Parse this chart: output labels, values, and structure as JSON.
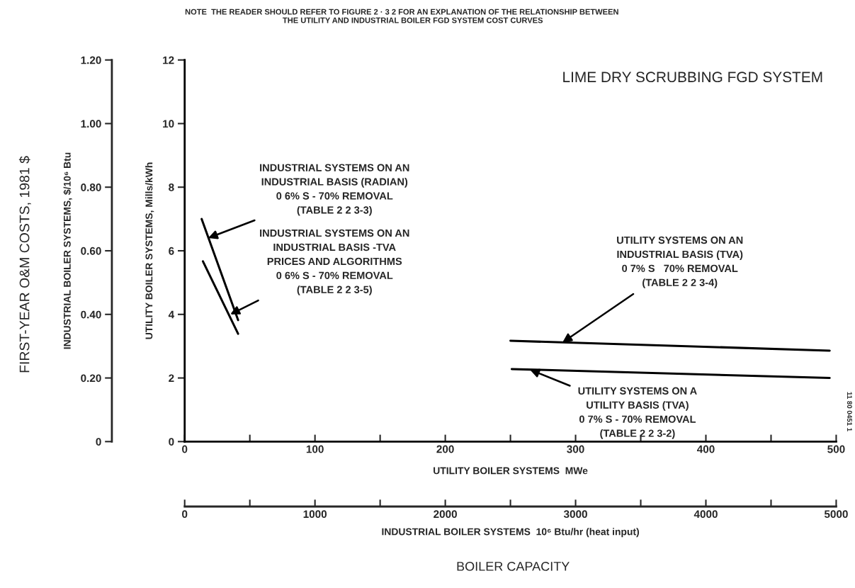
{
  "chart_data": {
    "type": "line",
    "title": "LIME DRY SCRUBBING FGD SYSTEM",
    "xlabel": "UTILITY BOILER SYSTEMS  MWe",
    "ylabel": "UTILITY BOILER SYSTEMS, Mills/kWh",
    "y2label": "INDUSTRIAL BOILER SYSTEMS, $/10⁶ Btu",
    "x2label": "INDUSTRIAL BOILER SYSTEMS  10⁶ Btu/hr (heat input)",
    "series": [
      {
        "color": "#000000",
        "x": [
          13,
          41
        ],
        "values": [
          7.0,
          3.82
        ]
      },
      {
        "color": "#000000",
        "x": [
          14,
          41
        ],
        "values": [
          5.67,
          3.39
        ]
      },
      {
        "color": "#000000",
        "x": [
          250,
          495
        ],
        "values": [
          3.17,
          2.86
        ]
      },
      {
        "color": "#000000",
        "x": [
          251,
          495
        ],
        "values": [
          2.28,
          2.0
        ]
      }
    ],
    "xlim": [
      0,
      500
    ],
    "xticks": [
      0,
      {
        "value": 50,
        "label": null
      },
      100,
      {
        "value": 150,
        "label": null
      },
      200,
      {
        "value": 250,
        "label": null
      },
      300,
      {
        "value": 350,
        "label": null
      },
      400,
      {
        "value": 450,
        "label": null
      },
      500
    ],
    "ylim": [
      0,
      12
    ],
    "yticks": [
      0,
      2,
      4,
      6,
      8,
      10,
      12
    ],
    "y2lim": [
      0,
      1.2
    ],
    "y2ticks": [
      0,
      {
        "value": 0.2,
        "label": "0.20"
      },
      {
        "value": 0.4,
        "label": "0.40"
      },
      {
        "value": 0.6,
        "label": "0.60"
      },
      {
        "value": 0.8,
        "label": "0.80"
      },
      {
        "value": 1.0,
        "label": "1.00"
      },
      {
        "value": 1.2,
        "label": "1.20"
      }
    ],
    "x2lim": [
      0,
      5000
    ],
    "x2ticks": [
      0,
      {
        "value": 500,
        "label": null
      },
      1000,
      {
        "value": 1500,
        "label": null
      },
      2000,
      {
        "value": 2500,
        "label": null
      },
      3000,
      {
        "value": 3500,
        "label": null
      },
      4000,
      {
        "value": 4500,
        "label": null
      },
      5000
    ],
    "grid": false,
    "legend": false,
    "marker": "none",
    "line_style": "solid",
    "annotations": [
      {
        "text": "INDUSTRIAL SYSTEMS ON AN\nINDUSTRIAL BASIS (RADIAN)\n0 6% S - 70% REMOVAL\n(TABLE 2 2 3-3)",
        "x": 18,
        "y": 6.4
      },
      {
        "text": "INDUSTRIAL SYSTEMS ON AN\nINDUSTRIAL BASIS -TVA\nPRICES AND ALGORITHMS\n0 6% S - 70% REMOVAL\n(TABLE 2 2 3-5)",
        "x": 35,
        "y": 4.0
      },
      {
        "text": "UTILITY SYSTEMS ON AN\nINDUSTRIAL BASIS (TVA)\n0 7% S   70% REMOVAL\n(TABLE 2 2 3-4)",
        "x": 290,
        "y": 3.12
      },
      {
        "text": "UTILITY SYSTEMS ON A\nUTILITY BASIS (TVA)\n0 7% S - 70% REMOVAL\n(TABLE 2 2 3-2)",
        "x": 265,
        "y": 2.26
      },
      "NOTE  THE READER SHOULD REFER TO FIGURE 2 · 3 2 FOR AN EXPLANATION OF THE RELATIONSHIP BETWEEN\n          THE UTILITY AND INDUSTRIAL BOILER FGD SYSTEM COST CURVES",
      "FIRST-YEAR O&M COSTS, 1981 $",
      "BOILER CAPACITY",
      "11 80 0451 1"
    ]
  }
}
